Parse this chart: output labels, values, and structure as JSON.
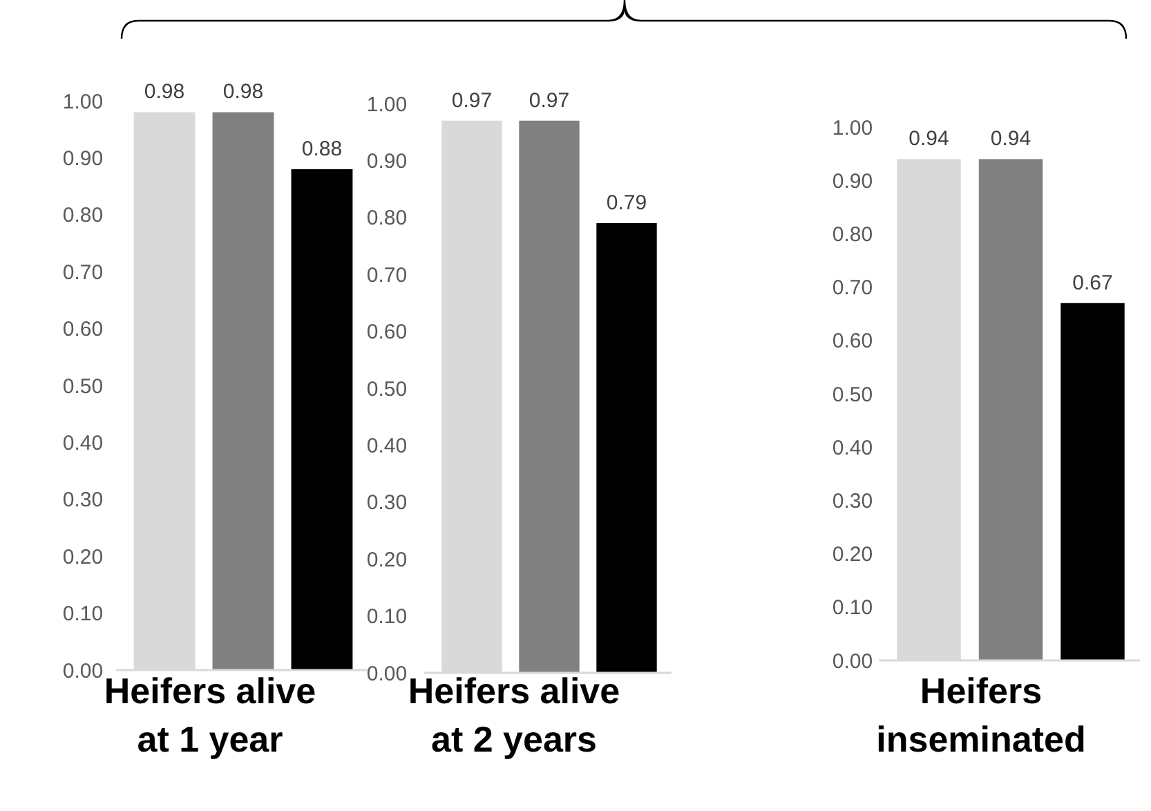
{
  "chart_data": [
    {
      "type": "bar",
      "categories": [
        null
      ],
      "xlabel": "Heifers alive at 1 year",
      "ylim": [
        0,
        1
      ],
      "yticks": [
        {
          "value": 0,
          "label": "0.00"
        },
        {
          "value": 0.1,
          "label": "0.10"
        },
        {
          "value": 0.2,
          "label": "0.20"
        },
        {
          "value": 0.3,
          "label": "0.30"
        },
        {
          "value": 0.4,
          "label": "0.40"
        },
        {
          "value": 0.5,
          "label": "0.50"
        },
        {
          "value": 0.6,
          "label": "0.60"
        },
        {
          "value": 0.7,
          "label": "0.70"
        },
        {
          "value": 0.8,
          "label": "0.80"
        },
        {
          "value": 0.9,
          "label": "0.90"
        },
        {
          "value": 1,
          "label": "1.00"
        }
      ],
      "grid": false,
      "data_labels": true,
      "series": [
        {
          "color": "#d9d9d9",
          "values": [
            0.98
          ]
        },
        {
          "color": "#808080",
          "values": [
            0.98
          ]
        },
        {
          "color": "#000000",
          "values": [
            0.88
          ]
        }
      ]
    },
    {
      "type": "bar",
      "categories": [
        null
      ],
      "xlabel": "Heifers alive at 2 years",
      "ylim": [
        0,
        1
      ],
      "yticks": [
        {
          "value": 0,
          "label": "0.00"
        },
        {
          "value": 0.1,
          "label": "0.10"
        },
        {
          "value": 0.2,
          "label": "0.20"
        },
        {
          "value": 0.3,
          "label": "0.30"
        },
        {
          "value": 0.4,
          "label": "0.40"
        },
        {
          "value": 0.5,
          "label": "0.50"
        },
        {
          "value": 0.6,
          "label": "0.60"
        },
        {
          "value": 0.7,
          "label": "0.70"
        },
        {
          "value": 0.8,
          "label": "0.80"
        },
        {
          "value": 0.9,
          "label": "0.90"
        },
        {
          "value": 1,
          "label": "1.00"
        }
      ],
      "grid": false,
      "data_labels": true,
      "series": [
        {
          "color": "#d9d9d9",
          "values": [
            0.97
          ]
        },
        {
          "color": "#808080",
          "values": [
            0.97
          ]
        },
        {
          "color": "#000000",
          "values": [
            0.79
          ]
        }
      ]
    },
    {
      "type": "bar",
      "categories": [
        null
      ],
      "xlabel": "Heifers inseminated",
      "ylim": [
        0,
        1
      ],
      "yticks": [
        {
          "value": 0,
          "label": "0.00"
        },
        {
          "value": 0.1,
          "label": "0.10"
        },
        {
          "value": 0.2,
          "label": "0.20"
        },
        {
          "value": 0.3,
          "label": "0.30"
        },
        {
          "value": 0.4,
          "label": "0.40"
        },
        {
          "value": 0.5,
          "label": "0.50"
        },
        {
          "value": 0.6,
          "label": "0.60"
        },
        {
          "value": 0.7,
          "label": "0.70"
        },
        {
          "value": 0.8,
          "label": "0.80"
        },
        {
          "value": 0.9,
          "label": "0.90"
        },
        {
          "value": 1,
          "label": "1.00"
        }
      ],
      "grid": false,
      "data_labels": true,
      "series": [
        {
          "color": "#d9d9d9",
          "values": [
            0.94
          ]
        },
        {
          "color": "#808080",
          "values": [
            0.94
          ]
        },
        {
          "color": "#000000",
          "values": [
            0.67
          ]
        }
      ]
    }
  ]
}
